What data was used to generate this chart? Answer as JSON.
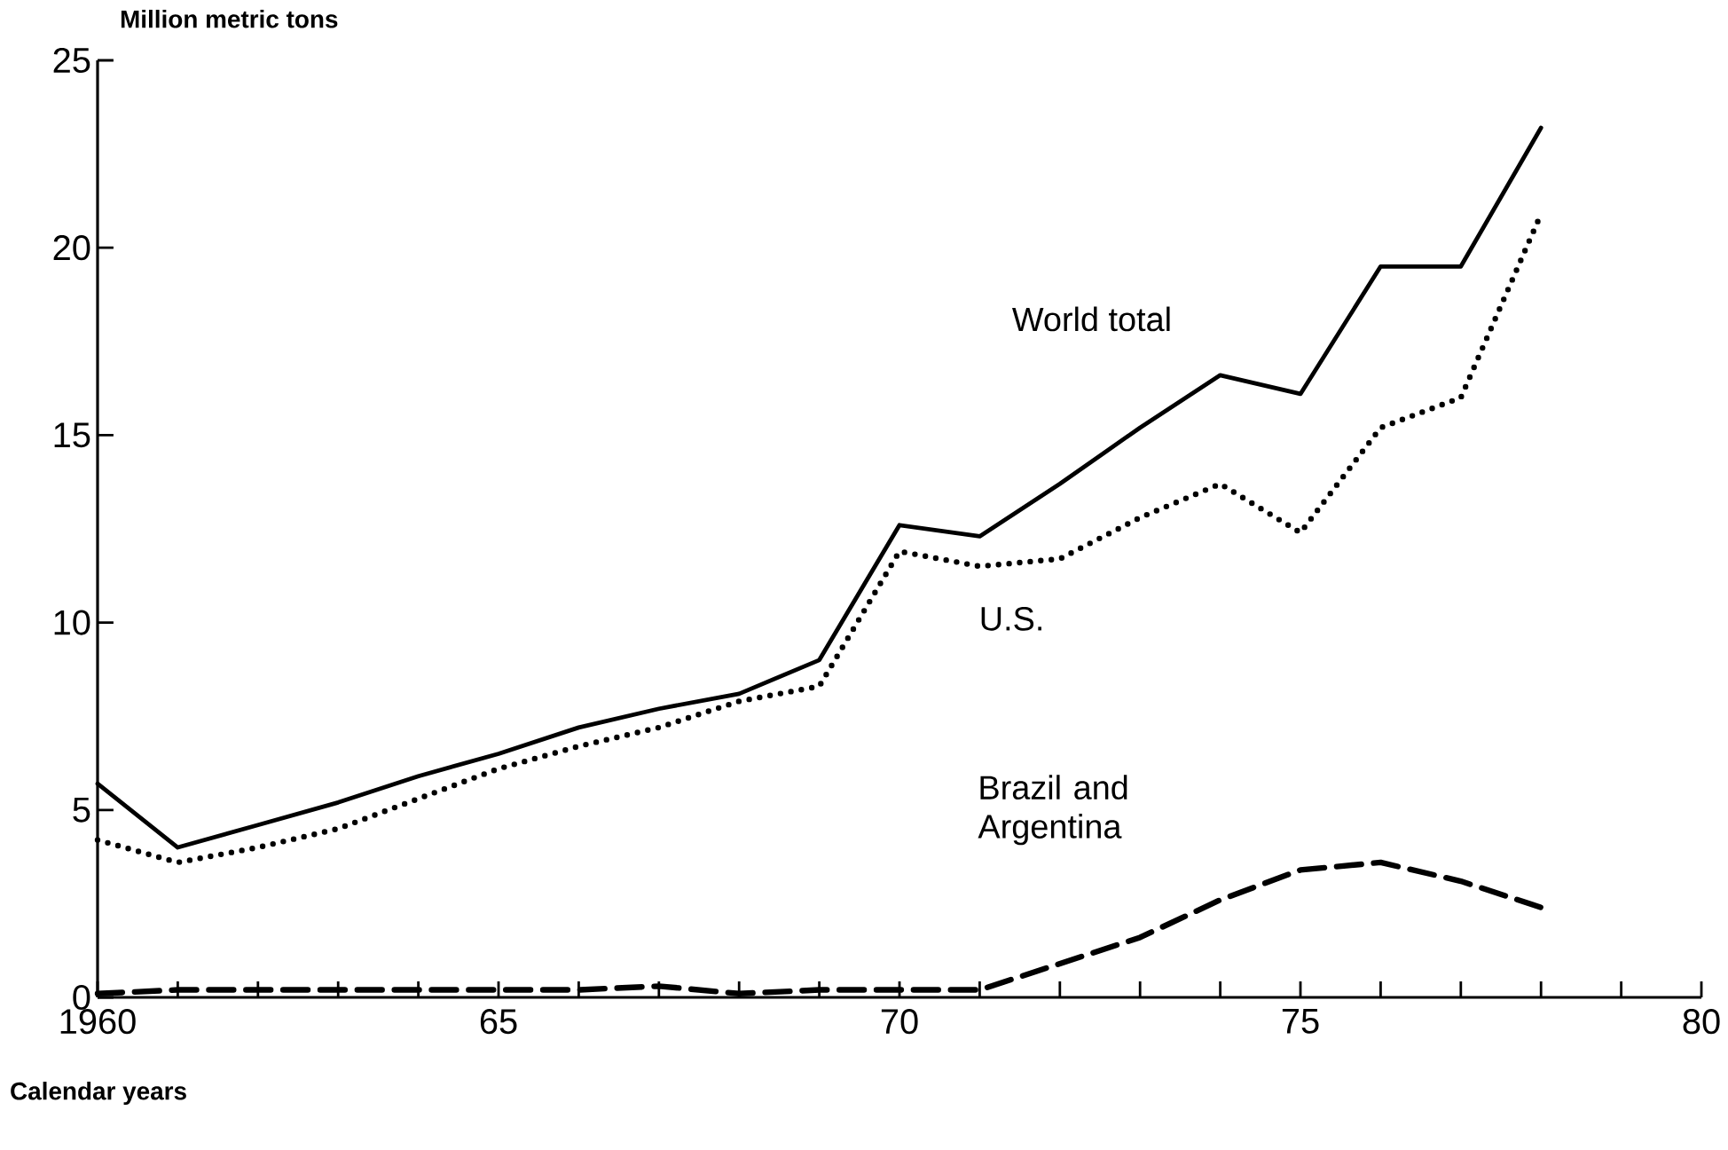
{
  "chart_data": {
    "type": "line",
    "xlabel": "Calendar years",
    "ylabel": "Million metric tons",
    "x": [
      1960,
      1961,
      1962,
      1963,
      1964,
      1965,
      1966,
      1967,
      1968,
      1969,
      1970,
      1971,
      1972,
      1973,
      1974,
      1975,
      1976,
      1977,
      1978
    ],
    "series": [
      {
        "name": "World total",
        "color": "#000000",
        "line_style": "solid",
        "values": [
          5.7,
          4.0,
          4.6,
          5.2,
          5.9,
          6.5,
          7.2,
          7.7,
          8.1,
          9.0,
          12.6,
          12.3,
          13.7,
          15.2,
          16.6,
          16.1,
          19.5,
          19.5,
          23.2
        ]
      },
      {
        "name": "U.S.",
        "color": "#000000",
        "line_style": "dotted",
        "values": [
          4.2,
          3.6,
          4.0,
          4.5,
          5.3,
          6.1,
          6.7,
          7.2,
          7.9,
          8.3,
          11.9,
          11.5,
          11.7,
          12.8,
          13.7,
          12.4,
          15.2,
          16.0,
          20.9
        ]
      },
      {
        "name": "Brazil and Argentina",
        "color": "#000000",
        "line_style": "dashed",
        "values": [
          0.1,
          0.2,
          0.2,
          0.2,
          0.2,
          0.2,
          0.2,
          0.3,
          0.1,
          0.2,
          0.2,
          0.2,
          0.9,
          1.6,
          2.6,
          3.4,
          3.6,
          3.1,
          2.4
        ]
      }
    ],
    "marker": "none",
    "xlim": [
      1960,
      1980
    ],
    "ylim": [
      0,
      25
    ],
    "xticks": [
      {
        "value": 1960,
        "label": "1960"
      },
      {
        "value": 1961,
        "label": null
      },
      {
        "value": 1962,
        "label": null
      },
      {
        "value": 1963,
        "label": null
      },
      {
        "value": 1964,
        "label": null
      },
      {
        "value": 1965,
        "label": "65"
      },
      {
        "value": 1966,
        "label": null
      },
      {
        "value": 1967,
        "label": null
      },
      {
        "value": 1968,
        "label": null
      },
      {
        "value": 1969,
        "label": null
      },
      {
        "value": 1970,
        "label": "70"
      },
      {
        "value": 1971,
        "label": null
      },
      {
        "value": 1972,
        "label": null
      },
      {
        "value": 1973,
        "label": null
      },
      {
        "value": 1974,
        "label": null
      },
      {
        "value": 1975,
        "label": "75"
      },
      {
        "value": 1976,
        "label": null
      },
      {
        "value": 1977,
        "label": null
      },
      {
        "value": 1978,
        "label": null
      },
      {
        "value": 1979,
        "label": null
      },
      {
        "value": 1980,
        "label": "80"
      }
    ],
    "yticks": [
      0,
      5,
      10,
      15,
      20,
      25
    ]
  }
}
